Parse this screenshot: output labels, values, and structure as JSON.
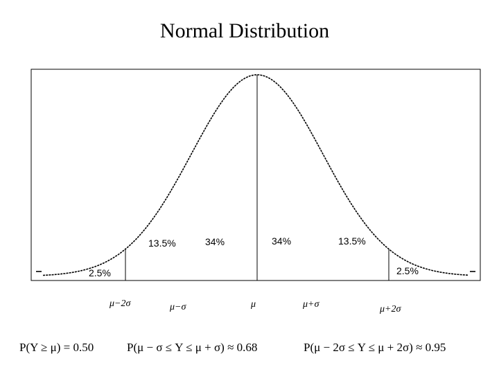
{
  "title": "Normal Distribution",
  "regions": {
    "left_tail": "2.5%",
    "left_outer": "13.5%",
    "left_inner": "34%",
    "right_inner": "34%",
    "right_outer": "13.5%",
    "right_tail": "2.5%"
  },
  "axis_marks": {
    "minus_2sigma": "μ−2σ",
    "minus_sigma": "μ−σ",
    "mu": "μ",
    "plus_sigma": "μ+σ",
    "plus_2sigma": "μ+2σ"
  },
  "formulas": {
    "f1": "P(Y ≥ μ) = 0.50",
    "f2": "P(μ − σ ≤ Y ≤ μ + σ) ≈ 0.68",
    "f3": "P(μ − 2σ ≤ Y ≤ μ + 2σ) ≈ 0.95"
  },
  "colors": {
    "ink": "#000000",
    "background": "#ffffff"
  }
}
